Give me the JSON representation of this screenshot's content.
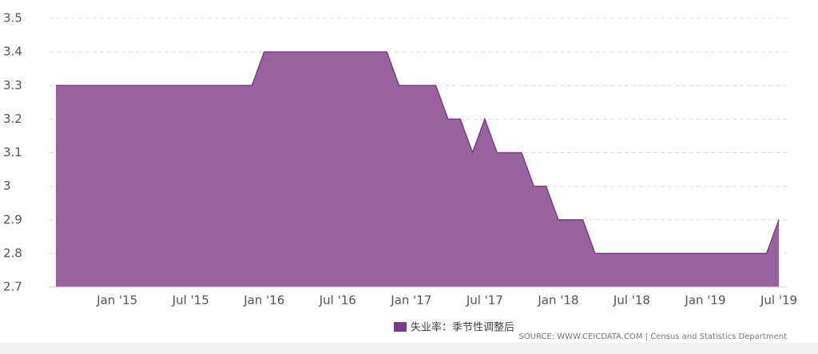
{
  "chart_data": {
    "type": "area",
    "categories": [
      null,
      null,
      null,
      null,
      null,
      "Jan '15",
      null,
      null,
      null,
      null,
      null,
      "Jul '15",
      null,
      null,
      null,
      null,
      null,
      "Jan '16",
      null,
      null,
      null,
      null,
      null,
      "Jul '16",
      null,
      null,
      null,
      null,
      null,
      "Jan '17",
      null,
      null,
      null,
      null,
      null,
      "Jul '17",
      null,
      null,
      null,
      null,
      null,
      "Jan '18",
      null,
      null,
      null,
      null,
      null,
      "Jul '18",
      null,
      null,
      null,
      null,
      null,
      "Jan '19",
      null,
      null,
      null,
      null,
      null,
      "Jul '19"
    ],
    "series": [
      {
        "name": "失业率：季节性调整后",
        "color": "#9a63a0",
        "line_color": "#7a3e82",
        "legend_color": "#7b3b8a",
        "values": [
          3.3,
          3.3,
          3.3,
          3.3,
          3.3,
          3.3,
          3.3,
          3.3,
          3.3,
          3.3,
          3.3,
          3.3,
          3.3,
          3.3,
          3.3,
          3.3,
          3.3,
          3.4,
          3.4,
          3.4,
          3.4,
          3.4,
          3.4,
          3.4,
          3.4,
          3.4,
          3.4,
          3.4,
          3.3,
          3.3,
          3.3,
          3.3,
          3.2,
          3.2,
          3.1,
          3.2,
          3.1,
          3.1,
          3.1,
          3.0,
          3.0,
          2.9,
          2.9,
          2.9,
          2.8,
          2.8,
          2.8,
          2.8,
          2.8,
          2.8,
          2.8,
          2.8,
          2.8,
          2.8,
          2.8,
          2.8,
          2.8,
          2.8,
          2.8,
          2.9
        ]
      }
    ],
    "ylim": [
      2.7,
      3.5
    ],
    "yticks": [
      2.7,
      2.8,
      2.9,
      3,
      3.1,
      3.2,
      3.3,
      3.4,
      3.5
    ],
    "grid": true,
    "source": "SOURCE: WWW.CEICDATA.COM | Census and Statistics Department"
  }
}
